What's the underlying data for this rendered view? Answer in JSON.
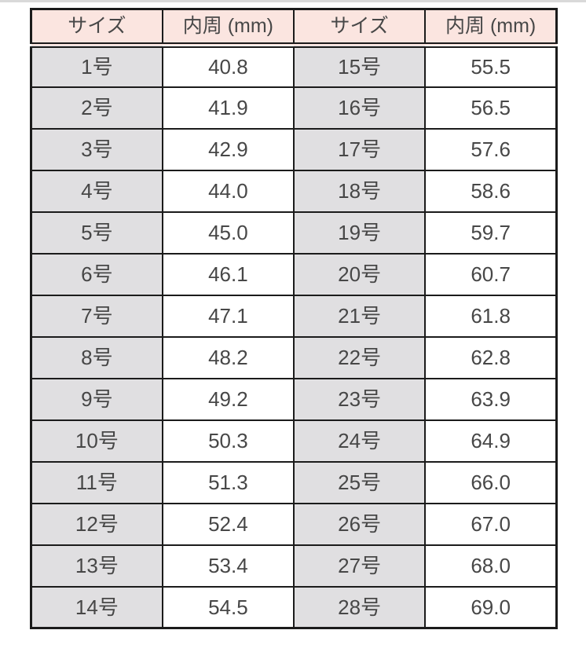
{
  "colors": {
    "header_bg": "#fbe5e0",
    "size_bg": "#e0dfe1",
    "value_bg": "#ffffff",
    "border": "#1b1b1b",
    "text": "#474747",
    "top_edge": "#d9d9d9"
  },
  "chart_data": {
    "type": "table",
    "title": "",
    "columns": [
      "サイズ",
      "内周 (mm)",
      "サイズ",
      "内周 (mm)"
    ],
    "rows": [
      [
        "1号",
        "40.8",
        "15号",
        "55.5"
      ],
      [
        "2号",
        "41.9",
        "16号",
        "56.5"
      ],
      [
        "3号",
        "42.9",
        "17号",
        "57.6"
      ],
      [
        "4号",
        "44.0",
        "18号",
        "58.6"
      ],
      [
        "5号",
        "45.0",
        "19号",
        "59.7"
      ],
      [
        "6号",
        "46.1",
        "20号",
        "60.7"
      ],
      [
        "7号",
        "47.1",
        "21号",
        "61.8"
      ],
      [
        "8号",
        "48.2",
        "22号",
        "62.8"
      ],
      [
        "9号",
        "49.2",
        "23号",
        "63.9"
      ],
      [
        "10号",
        "50.3",
        "24号",
        "64.9"
      ],
      [
        "11号",
        "51.3",
        "25号",
        "66.0"
      ],
      [
        "12号",
        "52.4",
        "26号",
        "67.0"
      ],
      [
        "13号",
        "53.4",
        "27号",
        "68.0"
      ],
      [
        "14号",
        "54.5",
        "28号",
        "69.0"
      ]
    ]
  }
}
